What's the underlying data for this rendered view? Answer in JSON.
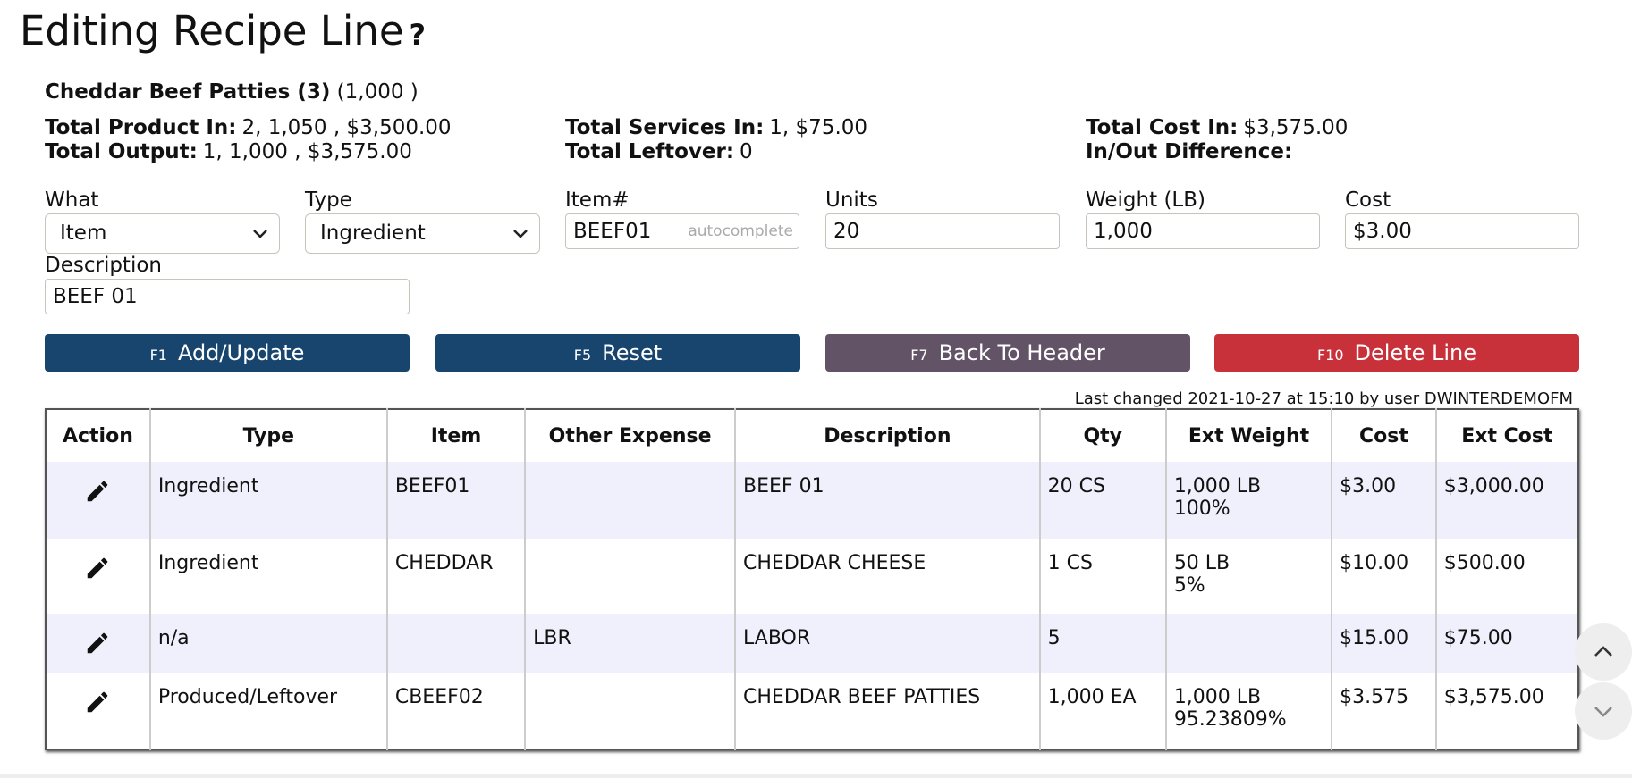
{
  "header": {
    "title": "Editing Recipe Line",
    "help": "?"
  },
  "recipe": {
    "name": "Cheddar Beef Patties (3)",
    "qty": "(1,000 )"
  },
  "totals": [
    {
      "label": "Total Product In:",
      "value": "2, 1,050 , $3,500.00"
    },
    {
      "label": "Total Output:",
      "value": "1, 1,000 , $3,575.00"
    },
    {
      "label": "Total Services In:",
      "value": "1, $75.00"
    },
    {
      "label": "Total Leftover:",
      "value": "0"
    },
    {
      "label": "Total Cost In:",
      "value": "$3,575.00"
    },
    {
      "label": "In/Out Difference:"
    }
  ],
  "form": {
    "what": {
      "label": "What",
      "value": "Item"
    },
    "type": {
      "label": "Type",
      "value": "Ingredient"
    },
    "item": {
      "label": "Item#",
      "value": "BEEF01",
      "hint": "autocomplete"
    },
    "units": {
      "label": "Units",
      "value": "20"
    },
    "weight": {
      "label": "Weight (LB)",
      "value": "1,000"
    },
    "cost": {
      "label": "Cost",
      "value": "$3.00"
    },
    "description": {
      "label": "Description",
      "value": "BEEF 01"
    }
  },
  "buttons": [
    {
      "key": "F1",
      "label": "Add/Update"
    },
    {
      "key": "F5",
      "label": "Reset"
    },
    {
      "key": "F7",
      "label": "Back To Header"
    },
    {
      "key": "F10",
      "label": "Delete Line"
    }
  ],
  "last_changed": "Last changed 2021-10-27 at 15:10 by user DWINTERDEMOFM",
  "table": {
    "columns": [
      "Action",
      "Type",
      "Item",
      "Other Expense",
      "Description",
      "Qty",
      "Ext Weight",
      "Cost",
      "Ext Cost"
    ],
    "rows": [
      {
        "type": "Ingredient",
        "item": "BEEF01",
        "description": "BEEF 01",
        "qty": "20 CS",
        "ext_weight": [
          "1,000 LB",
          "100%"
        ],
        "cost": "$3.00",
        "ext_cost": "$3,000.00"
      },
      {
        "type": "Ingredient",
        "item": "CHEDDAR",
        "description": "CHEDDAR CHEESE",
        "qty": "1 CS",
        "ext_weight": [
          "50 LB",
          "5%"
        ],
        "cost": "$10.00",
        "ext_cost": "$500.00"
      },
      {
        "type": "n/a",
        "other_expense": "LBR",
        "description": "LABOR",
        "qty": "5",
        "cost": "$15.00",
        "ext_cost": "$75.00"
      },
      {
        "type": "Produced/Leftover",
        "item": "CBEEF02",
        "description": "CHEDDAR BEEF PATTIES",
        "qty": "1,000 EA",
        "ext_weight": [
          "1,000 LB",
          "95.23809%"
        ],
        "cost": "$3.575",
        "ext_cost": "$3,575.00"
      }
    ]
  }
}
